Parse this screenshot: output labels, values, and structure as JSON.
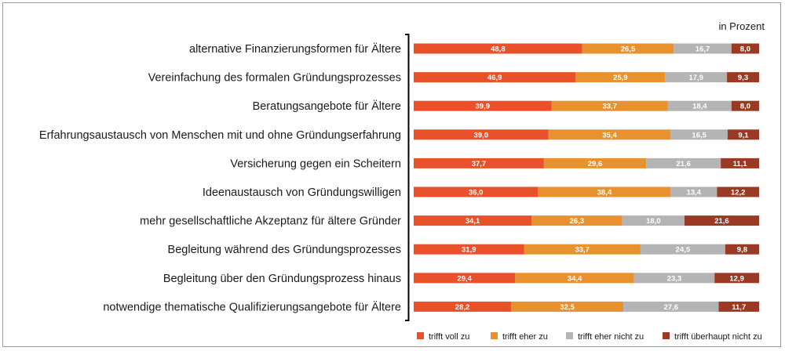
{
  "chart_data": {
    "type": "bar",
    "orientation": "horizontal",
    "stacked": true,
    "unit_label": "in Prozent",
    "categories": [
      "alternative Finanzierungsformen für Ältere",
      "Vereinfachung des formalen Gründungsprozesses",
      "Beratungsangebote für Ältere",
      "Erfahrungsaustausch von Menschen mit und ohne Gründungserfahrung",
      "Versicherung gegen ein Scheitern",
      "Ideenaustausch von Gründungswilligen",
      "mehr gesellschaftliche Akzeptanz für ältere Gründer",
      "Begleitung während des Gründungsprozesses",
      "Begleitung über den Gründungsprozess hinaus",
      "notwendige thematische Qualifizierungsangebote für Ältere"
    ],
    "series": [
      {
        "name": "trifft voll zu",
        "color": "#e8512a",
        "values": [
          48.8,
          46.9,
          39.9,
          39.0,
          37.7,
          36.0,
          34.1,
          31.9,
          29.4,
          28.2
        ],
        "labels": [
          "48,8",
          "46,9",
          "39,9",
          "39,0",
          "37,7",
          "36,0",
          "34,1",
          "31,9",
          "29,4",
          "28,2"
        ]
      },
      {
        "name": "trifft eher zu",
        "color": "#e8912f",
        "values": [
          26.5,
          25.9,
          33.7,
          35.4,
          29.6,
          38.4,
          26.3,
          33.7,
          34.4,
          32.5
        ],
        "labels": [
          "26,5",
          "25,9",
          "33,7",
          "35,4",
          "29,6",
          "38,4",
          "26,3",
          "33,7",
          "34,4",
          "32,5"
        ]
      },
      {
        "name": "trifft eher nicht zu",
        "color": "#b4b4b4",
        "values": [
          16.7,
          17.9,
          18.4,
          16.5,
          21.6,
          13.4,
          18.0,
          24.5,
          23.3,
          27.6
        ],
        "labels": [
          "16,7",
          "17,9",
          "18,4",
          "16,5",
          "21,6",
          "13,4",
          "18,0",
          "24,5",
          "23,3",
          "27,6"
        ]
      },
      {
        "name": "trifft überhaupt nicht zu",
        "color": "#9b3a24",
        "values": [
          8.0,
          9.3,
          8.0,
          9.1,
          11.1,
          12.2,
          21.6,
          9.8,
          12.9,
          11.7
        ],
        "labels": [
          "8,0",
          "9,3",
          "8,0",
          "9,1",
          "11,1",
          "12,2",
          "21,6",
          "9,8",
          "12,9",
          "11,7"
        ]
      }
    ],
    "legend_position": "bottom-right",
    "grid": false
  }
}
